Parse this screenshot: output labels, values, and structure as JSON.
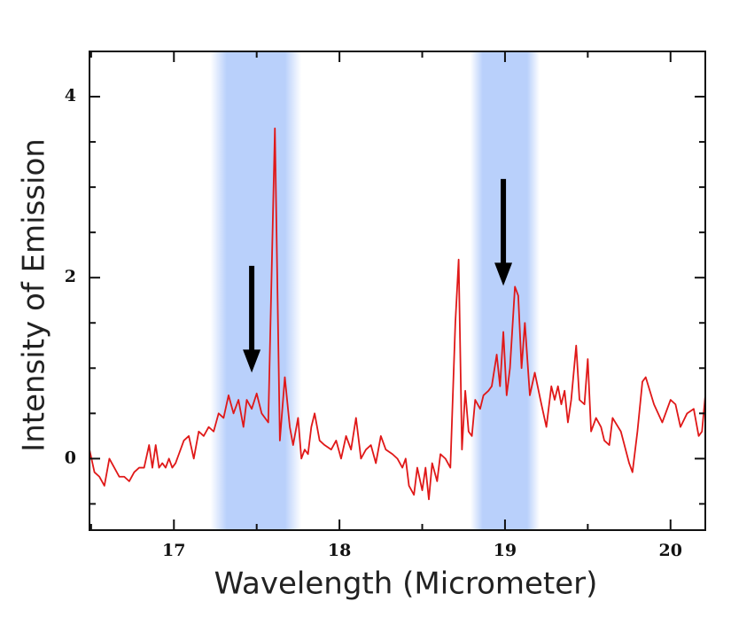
{
  "chart_data": {
    "type": "line",
    "xlabel": "Wavelength (Micrometer)",
    "ylabel": "Intensity of Emission",
    "xlim": [
      16.49,
      20.21
    ],
    "ylim": [
      -0.79,
      4.5
    ],
    "xticks": [
      17,
      18,
      19,
      20
    ],
    "yticks": [
      0,
      2,
      4
    ],
    "xminorticks": [
      16.5,
      17.5,
      18.5,
      19.5
    ],
    "yminorticks": [
      -0.5,
      0.5,
      1,
      1.5,
      2.5,
      3,
      3.5
    ],
    "grid": false,
    "bands": [
      [
        17.22,
        17.77
      ],
      [
        18.79,
        19.21
      ]
    ],
    "band_color": "#b9d0fb",
    "arrows": [
      {
        "x": 17.47,
        "y_start": 2.13,
        "y_end": 0.95
      },
      {
        "x": 18.99,
        "y_start": 3.09,
        "y_end": 1.91
      }
    ],
    "series": [
      {
        "color": "#e01818",
        "x": [
          16.49,
          16.52,
          16.55,
          16.58,
          16.61,
          16.64,
          16.67,
          16.7,
          16.73,
          16.76,
          16.79,
          16.82,
          16.85,
          16.87,
          16.89,
          16.91,
          16.93,
          16.95,
          16.97,
          16.99,
          17.01,
          17.03,
          17.06,
          17.09,
          17.12,
          17.15,
          17.18,
          17.21,
          17.24,
          17.27,
          17.3,
          17.33,
          17.36,
          17.39,
          17.42,
          17.44,
          17.47,
          17.5,
          17.53,
          17.57,
          17.61,
          17.64,
          17.67,
          17.7,
          17.72,
          17.75,
          17.77,
          17.79,
          17.81,
          17.83,
          17.85,
          17.88,
          17.91,
          17.95,
          17.98,
          18.01,
          18.04,
          18.07,
          18.1,
          18.13,
          18.16,
          18.19,
          18.22,
          18.25,
          18.28,
          18.32,
          18.35,
          18.38,
          18.4,
          18.42,
          18.45,
          18.47,
          18.5,
          18.52,
          18.54,
          18.56,
          18.59,
          18.61,
          18.64,
          18.67,
          18.7,
          18.72,
          18.74,
          18.76,
          18.78,
          18.8,
          18.82,
          18.85,
          18.87,
          18.9,
          18.92,
          18.95,
          18.97,
          18.99,
          19.01,
          19.03,
          19.06,
          19.08,
          19.1,
          19.12,
          19.15,
          19.18,
          19.22,
          19.25,
          19.28,
          19.3,
          19.32,
          19.34,
          19.36,
          19.38,
          19.4,
          19.43,
          19.45,
          19.48,
          19.5,
          19.52,
          19.55,
          19.58,
          19.6,
          19.63,
          19.65,
          19.7,
          19.75,
          19.77,
          19.8,
          19.83,
          19.85,
          19.9,
          19.95,
          20.0,
          20.03,
          20.06,
          20.1,
          20.14,
          20.17,
          20.19,
          20.21
        ],
        "values": [
          0.1,
          -0.15,
          -0.2,
          -0.3,
          0.0,
          -0.1,
          -0.2,
          -0.2,
          -0.25,
          -0.15,
          -0.1,
          -0.1,
          0.15,
          -0.1,
          0.15,
          -0.1,
          -0.05,
          -0.1,
          0.0,
          -0.1,
          -0.05,
          0.05,
          0.2,
          0.25,
          0.0,
          0.3,
          0.25,
          0.35,
          0.3,
          0.5,
          0.45,
          0.7,
          0.5,
          0.65,
          0.35,
          0.65,
          0.55,
          0.72,
          0.5,
          0.4,
          3.65,
          0.2,
          0.9,
          0.35,
          0.15,
          0.45,
          0.0,
          0.1,
          0.05,
          0.35,
          0.5,
          0.2,
          0.15,
          0.1,
          0.2,
          0.0,
          0.25,
          0.1,
          0.45,
          0.0,
          0.1,
          0.15,
          -0.05,
          0.25,
          0.1,
          0.05,
          0.0,
          -0.1,
          0.0,
          -0.3,
          -0.4,
          -0.1,
          -0.35,
          -0.1,
          -0.45,
          -0.05,
          -0.25,
          0.05,
          0.0,
          -0.1,
          1.5,
          2.2,
          0.1,
          0.75,
          0.3,
          0.25,
          0.65,
          0.55,
          0.7,
          0.75,
          0.8,
          1.15,
          0.8,
          1.4,
          0.7,
          1.0,
          1.9,
          1.8,
          1.0,
          1.5,
          0.7,
          0.95,
          0.6,
          0.35,
          0.8,
          0.65,
          0.8,
          0.6,
          0.75,
          0.4,
          0.65,
          1.25,
          0.65,
          0.6,
          1.1,
          0.3,
          0.45,
          0.35,
          0.2,
          0.15,
          0.45,
          0.3,
          -0.05,
          -0.15,
          0.3,
          0.85,
          0.9,
          0.6,
          0.4,
          0.65,
          0.6,
          0.35,
          0.5,
          0.55,
          0.25,
          0.3,
          0.7
        ]
      }
    ]
  }
}
